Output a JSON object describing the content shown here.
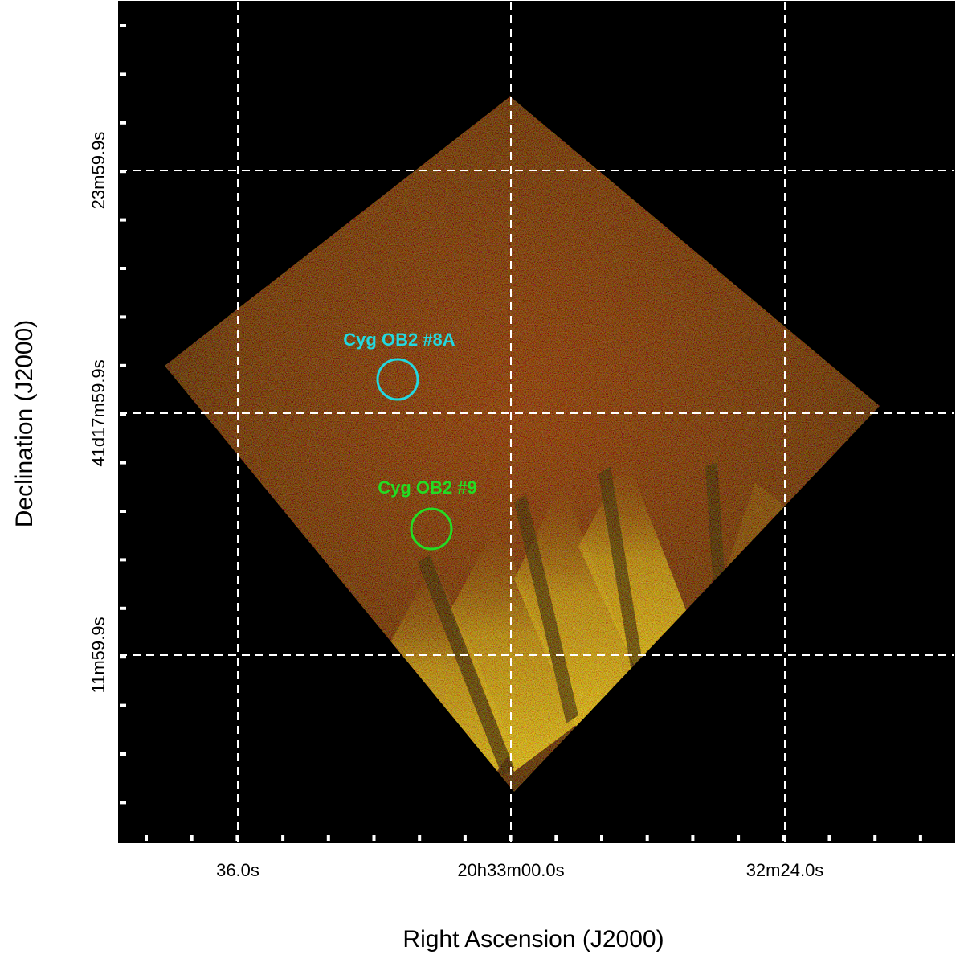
{
  "image": {
    "type": "x-ray-image",
    "description_colors": {
      "background": "#000000",
      "grid": "#ffffff",
      "frame": "#000000"
    }
  },
  "axes": {
    "xlabel": "Right Ascension (J2000)",
    "ylabel": "Declination (J2000)",
    "x_ticks": [
      "36.0s",
      "20h33m00.0s",
      "32m24.0s"
    ],
    "y_ticks": [
      "23m59.9s",
      "41d17m59.9s",
      "11m59.9s"
    ],
    "grid": true
  },
  "sources": [
    {
      "name": "Cyg OB2 #8A",
      "color": "#22d8e0"
    },
    {
      "name": "Cyg OB2 #9",
      "color": "#22dd22"
    }
  ]
}
